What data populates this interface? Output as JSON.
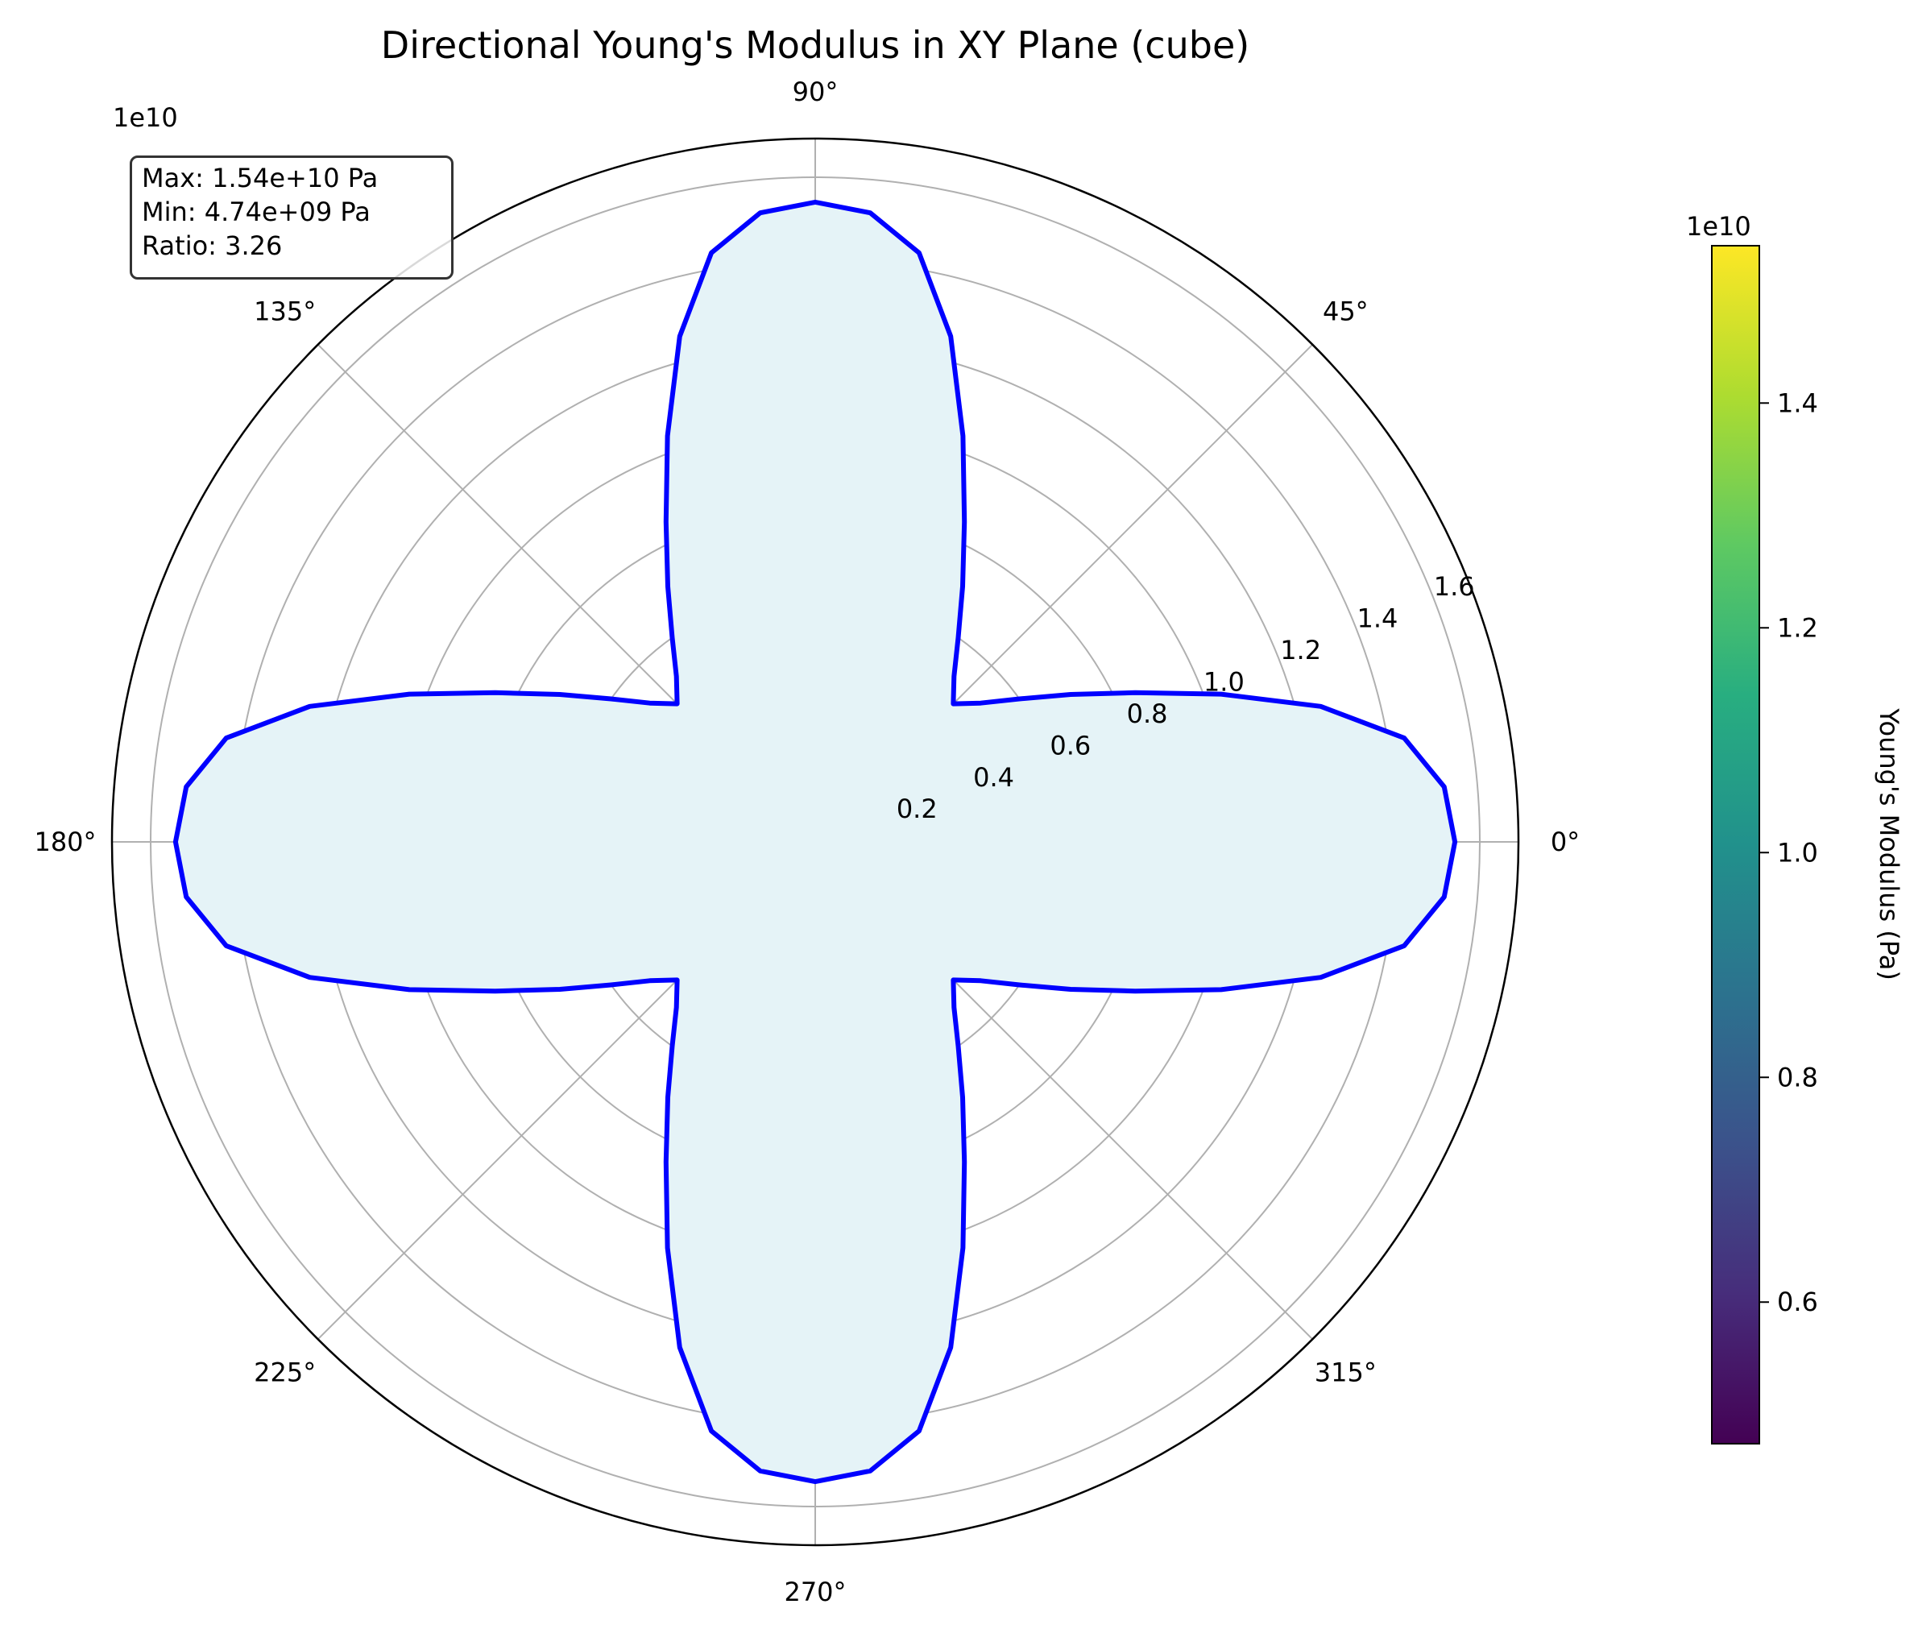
{
  "chart_data": {
    "type": "polar-line",
    "title": "Directional Young's Modulus in XY Plane (cube)",
    "radial_axis": {
      "offset_label": "1e10",
      "range": [
        0,
        1.6
      ],
      "ticks": [
        0.2,
        0.4,
        0.6,
        0.8,
        1.0,
        1.2,
        1.4,
        1.6
      ],
      "tick_labels": [
        "0.2",
        "0.4",
        "0.6",
        "0.8",
        "1.0",
        "1.2",
        "1.4",
        "1.6"
      ]
    },
    "angular_axis": {
      "ticks_deg": [
        0,
        45,
        90,
        135,
        180,
        225,
        270,
        315
      ],
      "tick_labels": [
        "0°",
        "45°",
        "90°",
        "135°",
        "180°",
        "225°",
        "270°",
        "315°"
      ]
    },
    "grid": true,
    "series": [
      {
        "angles_deg": [
          0,
          5,
          10,
          15,
          20,
          25,
          30,
          35,
          40,
          45,
          50,
          55,
          60,
          65,
          70,
          75,
          80,
          85,
          90
        ],
        "values": [
          1.54,
          1.52,
          1.44,
          1.26,
          1.04,
          0.85,
          0.71,
          0.6,
          0.52,
          0.47,
          0.52,
          0.6,
          0.71,
          0.85,
          1.04,
          1.26,
          1.44,
          1.52,
          1.54
        ],
        "symmetry": "four-fold",
        "line_color": "#0000ff",
        "fill_color": "#e5f3f7"
      }
    ],
    "colorbar": {
      "label": "Young's Modulus (Pa)",
      "offset_label": "1e10",
      "range": [
        0.474,
        1.54
      ],
      "ticks": [
        0.6,
        0.8,
        1.0,
        1.2,
        1.4
      ],
      "tick_labels": [
        "0.6",
        "0.8",
        "1.0",
        "1.2",
        "1.4"
      ],
      "colormap": "viridis"
    },
    "annotation": {
      "lines": [
        "Max: 1.54e+10 Pa",
        "Min: 4.74e+09 Pa",
        "Ratio: 3.26"
      ]
    }
  }
}
